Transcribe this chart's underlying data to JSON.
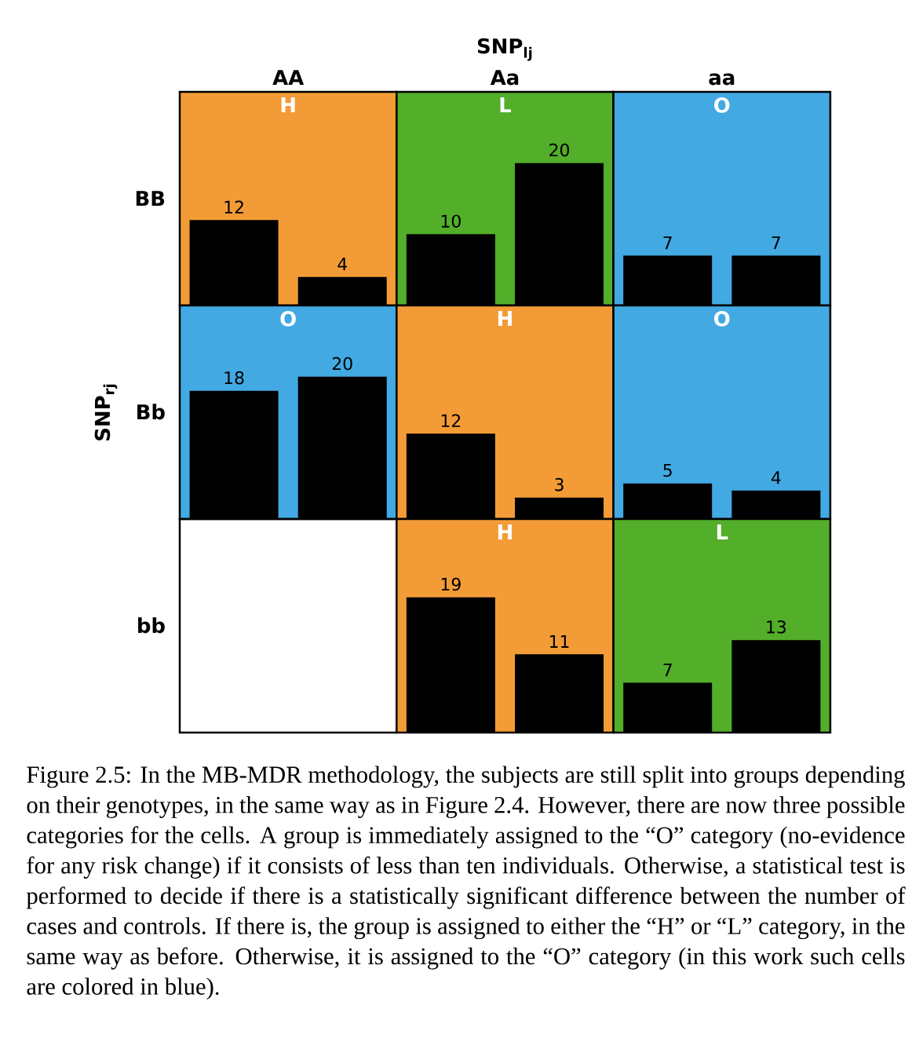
{
  "chart_data": [
    {
      "type": "bar",
      "title": "H",
      "categories": [
        null,
        null
      ],
      "values": [
        12,
        4
      ],
      "color": "#000000",
      "ylim": [
        0,
        30
      ],
      "data_labels": true,
      "bands": [
        {
          "axis": "y",
          "from": 0,
          "to": 30,
          "color": "#f39c37"
        }
      ]
    },
    {
      "type": "bar",
      "title": "L",
      "categories": [
        null,
        null
      ],
      "values": [
        10,
        20
      ],
      "color": "#000000",
      "ylim": [
        0,
        30
      ],
      "data_labels": true,
      "bands": [
        {
          "axis": "y",
          "from": 0,
          "to": 30,
          "color": "#53ae2a"
        }
      ]
    },
    {
      "type": "bar",
      "title": "O",
      "categories": [
        null,
        null
      ],
      "values": [
        7,
        7
      ],
      "color": "#000000",
      "ylim": [
        0,
        30
      ],
      "data_labels": true,
      "bands": [
        {
          "axis": "y",
          "from": 0,
          "to": 30,
          "color": "#42a9e3"
        }
      ]
    },
    {
      "type": "bar",
      "title": "O",
      "categories": [
        null,
        null
      ],
      "values": [
        18,
        20
      ],
      "color": "#000000",
      "ylim": [
        0,
        30
      ],
      "data_labels": true,
      "bands": [
        {
          "axis": "y",
          "from": 0,
          "to": 30,
          "color": "#42a9e3"
        }
      ]
    },
    {
      "type": "bar",
      "title": "H",
      "categories": [
        null,
        null
      ],
      "values": [
        12,
        3
      ],
      "color": "#000000",
      "ylim": [
        0,
        30
      ],
      "data_labels": true,
      "bands": [
        {
          "axis": "y",
          "from": 0,
          "to": 30,
          "color": "#f39c37"
        }
      ]
    },
    {
      "type": "bar",
      "title": "O",
      "categories": [
        null,
        null
      ],
      "values": [
        5,
        4
      ],
      "color": "#000000",
      "ylim": [
        0,
        30
      ],
      "data_labels": true,
      "bands": [
        {
          "axis": "y",
          "from": 0,
          "to": 30,
          "color": "#42a9e3"
        }
      ]
    },
    {
      "type": "other"
    },
    {
      "type": "bar",
      "title": "H",
      "categories": [
        null,
        null
      ],
      "values": [
        19,
        11
      ],
      "color": "#000000",
      "ylim": [
        0,
        30
      ],
      "data_labels": true,
      "bands": [
        {
          "axis": "y",
          "from": 0,
          "to": 30,
          "color": "#f39c37"
        }
      ]
    },
    {
      "type": "bar",
      "title": "L",
      "categories": [
        null,
        null
      ],
      "values": [
        7,
        13
      ],
      "color": "#000000",
      "ylim": [
        0,
        30
      ],
      "data_labels": true,
      "bands": [
        {
          "axis": "y",
          "from": 0,
          "to": 30,
          "color": "#53ae2a"
        }
      ]
    },
    {
      "type": "other",
      "title": "SNP$_{lj}$",
      "ylabel": "SNP$_{rj}$",
      "categories": [
        "AA",
        "Aa",
        "aa"
      ],
      "y_categories": [
        "BB",
        "Bb",
        "bb"
      ],
      "annotations": [
        "Figure 2.5: In the MB-MDR methodology, the subjects are still split into groups depending on their genotypes, in the same way as in Figure 2.4. However, there are now three possible categories for the cells. A group is immediately assigned to the “O” category (no-evidence for any risk change) if it consists of less than ten individuals. Otherwise, a statistical test is performed to decide if there is a statistically significant difference between the number of cases and controls. If there is, the group is assigned to either the “H” or “L” category, in the same way as before. Otherwise, it is assigned to the “O” category (in this work such cells are colored in blue)."
      ]
    }
  ]
}
